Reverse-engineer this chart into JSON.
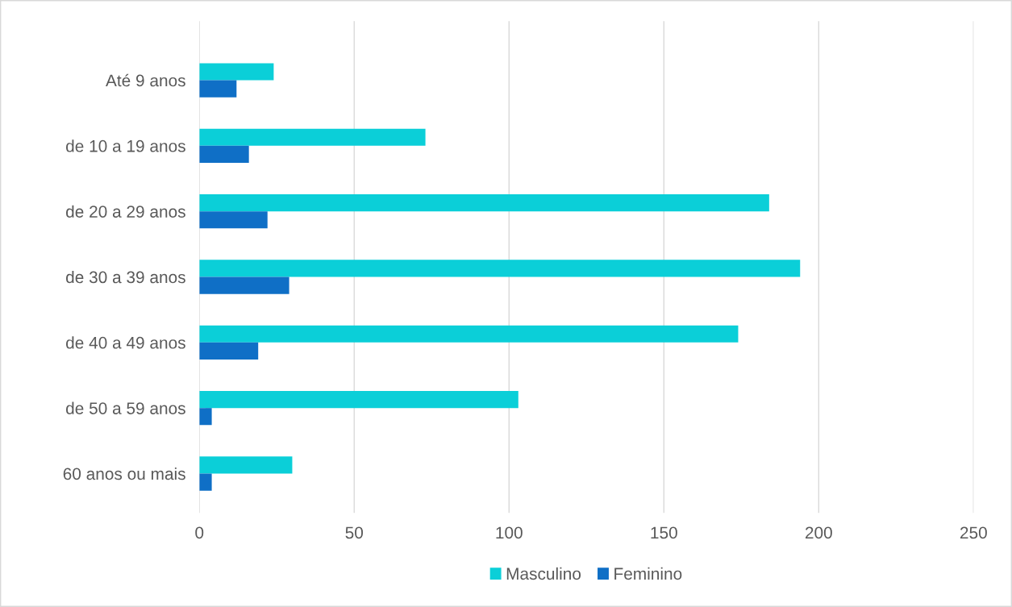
{
  "chart_data": {
    "type": "bar",
    "orientation": "horizontal",
    "categories": [
      "Até 9 anos",
      "de 10 a 19 anos",
      "de 20 a 29 anos",
      "de 30 a 39 anos",
      "de 40 a 49 anos",
      "de 50 a 59 anos",
      "60 anos ou mais"
    ],
    "series": [
      {
        "name": "Masculino",
        "color": "#0bcfd8",
        "values": [
          24,
          73,
          184,
          194,
          174,
          103,
          30
        ]
      },
      {
        "name": "Feminino",
        "color": "#0f6fc6",
        "values": [
          12,
          16,
          22,
          29,
          19,
          4,
          4
        ]
      }
    ],
    "xlim": [
      0,
      250
    ],
    "xticks": [
      0,
      50,
      100,
      150,
      200,
      250
    ],
    "grid": "x",
    "legend": "bottom"
  }
}
